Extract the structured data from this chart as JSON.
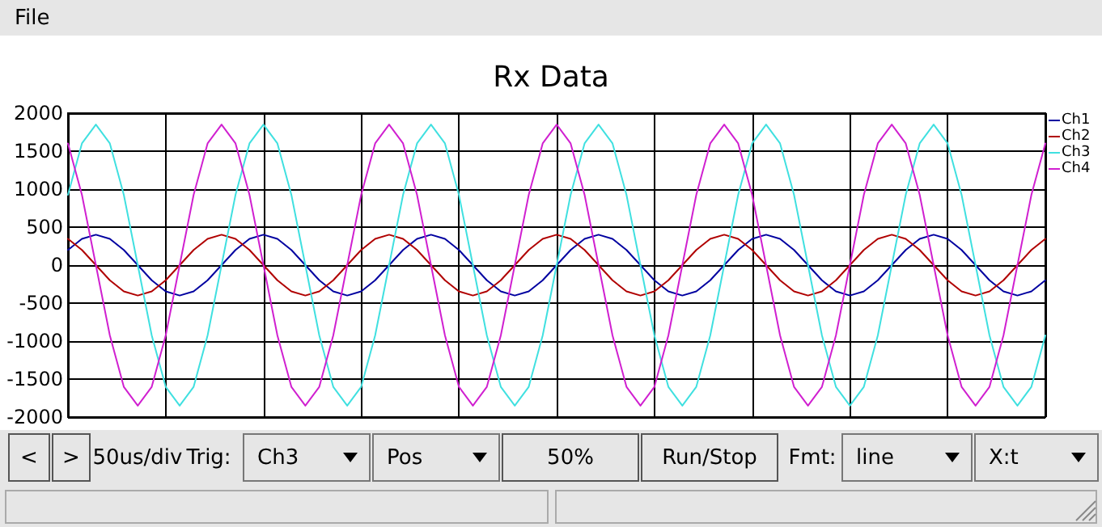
{
  "chart_data": {
    "type": "line",
    "title": "Rx Data",
    "categories": [
      null,
      null,
      null,
      null,
      null,
      null,
      null,
      null,
      null,
      null,
      null,
      null,
      null,
      null,
      null,
      null,
      null,
      null,
      null,
      null,
      null,
      null,
      null,
      null,
      null,
      null,
      null,
      null,
      null,
      null,
      null,
      null,
      null,
      null,
      null,
      null,
      null,
      null,
      null,
      null,
      null,
      null,
      null,
      null,
      null,
      null,
      null,
      null,
      null,
      null,
      null,
      null,
      null,
      null,
      null,
      null,
      null,
      null,
      null,
      null,
      null,
      null,
      null,
      null,
      null,
      null,
      null,
      null,
      null,
      null,
      null
    ],
    "ylim": [
      -2000,
      2000
    ],
    "yticks": [
      -2000,
      -1500,
      -1000,
      -500,
      0,
      500,
      1000,
      1500,
      2000
    ],
    "grid": true,
    "legend": "top right",
    "marker": "none",
    "line_style": "solid",
    "series": [
      {
        "name": "Ch1",
        "color": "#0000a0",
        "values": [
          200,
          346,
          400,
          346,
          200,
          0,
          -200,
          -346,
          -400,
          -346,
          -200,
          0,
          200,
          346,
          400,
          346,
          200,
          0,
          -200,
          -346,
          -400,
          -346,
          -200,
          0,
          200,
          346,
          400,
          346,
          200,
          0,
          -200,
          -346,
          -400,
          -346,
          -200,
          0,
          200,
          346,
          400,
          346,
          200,
          0,
          -200,
          -346,
          -400,
          -346,
          -200,
          0,
          200,
          346,
          400,
          346,
          200,
          0,
          -200,
          -346,
          -400,
          -346,
          -200,
          0,
          200,
          346,
          400,
          346,
          200,
          0,
          -200,
          -346,
          -400,
          -346,
          -200
        ]
      },
      {
        "name": "Ch2",
        "color": "#b00000",
        "values": [
          346,
          200,
          0,
          -200,
          -346,
          -400,
          -346,
          -200,
          0,
          200,
          346,
          400,
          346,
          200,
          0,
          -200,
          -346,
          -400,
          -346,
          -200,
          0,
          200,
          346,
          400,
          346,
          200,
          0,
          -200,
          -346,
          -400,
          -346,
          -200,
          0,
          200,
          346,
          400,
          346,
          200,
          0,
          -200,
          -346,
          -400,
          -346,
          -200,
          0,
          200,
          346,
          400,
          346,
          200,
          0,
          -200,
          -346,
          -400,
          -346,
          -200,
          0,
          200,
          346,
          400,
          346,
          200,
          0,
          -200,
          -346,
          -400,
          -346,
          -200,
          0,
          200,
          346
        ]
      },
      {
        "name": "Ch3",
        "color": "#40e0e0",
        "values": [
          925,
          1602,
          1850,
          1602,
          925,
          0,
          -925,
          -1602,
          -1850,
          -1602,
          -925,
          0,
          925,
          1602,
          1850,
          1602,
          925,
          0,
          -925,
          -1602,
          -1850,
          -1602,
          -925,
          0,
          925,
          1602,
          1850,
          1602,
          925,
          0,
          -925,
          -1602,
          -1850,
          -1602,
          -925,
          0,
          925,
          1602,
          1850,
          1602,
          925,
          0,
          -925,
          -1602,
          -1850,
          -1602,
          -925,
          0,
          925,
          1602,
          1850,
          1602,
          925,
          0,
          -925,
          -1602,
          -1850,
          -1602,
          -925,
          0,
          925,
          1602,
          1850,
          1602,
          925,
          0,
          -925,
          -1602,
          -1850,
          -1602,
          -925
        ]
      },
      {
        "name": "Ch4",
        "color": "#d020d0",
        "values": [
          1602,
          925,
          0,
          -925,
          -1602,
          -1850,
          -1602,
          -925,
          0,
          925,
          1602,
          1850,
          1602,
          925,
          0,
          -925,
          -1602,
          -1850,
          -1602,
          -925,
          0,
          925,
          1602,
          1850,
          1602,
          925,
          0,
          -925,
          -1602,
          -1850,
          -1602,
          -925,
          0,
          925,
          1602,
          1850,
          1602,
          925,
          0,
          -925,
          -1602,
          -1850,
          -1602,
          -925,
          0,
          925,
          1602,
          1850,
          1602,
          925,
          0,
          -925,
          -1602,
          -1850,
          -1602,
          -925,
          0,
          925,
          1602,
          1850,
          1602,
          925,
          0,
          -925,
          -1602,
          -1850,
          -1602,
          -925,
          0,
          925,
          1602
        ]
      }
    ],
    "annotations": [
      "File",
      "<",
      ">",
      "50us/div",
      "Trig:",
      "Ch3",
      "Pos",
      "50%",
      "Run/Stop",
      "Fmt:",
      "line",
      "X:t"
    ]
  }
}
